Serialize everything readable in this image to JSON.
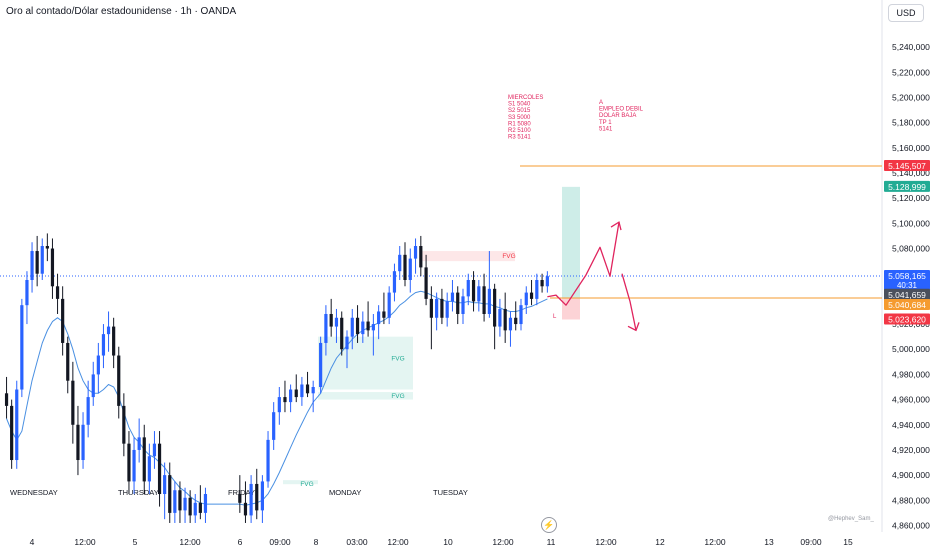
{
  "header": {
    "title": "Oro al contado/Dólar estadounidense · 1h · OANDA",
    "currency": "USD"
  },
  "watermark": "@Hephev_Sam_",
  "colors": {
    "up": "#2962ff",
    "down": "#131722",
    "ma": "#4a90e2",
    "orange": "#f59b2f",
    "red_label": "#f23645",
    "green_label": "#22ab94",
    "blue_label": "#2962ff",
    "grey_label": "#4a4f5c",
    "annotation": "#e0245e"
  },
  "chart_data": {
    "type": "candlestick",
    "y_range": [
      4858000,
      5252000
    ],
    "y_ticks": [
      "5,240,000",
      "5,220,000",
      "5,200,000",
      "5,180,000",
      "5,160,000",
      "5,140,000",
      "5,120,000",
      "5,100,000",
      "5,080,000",
      "5,060,000",
      "5,040,000",
      "5,020,000",
      "5,000,000",
      "4,980,000",
      "4,960,000",
      "4,940,000",
      "4,920,000",
      "4,900,000",
      "4,880,000",
      "4,860,000"
    ],
    "y_tick_values": [
      5240000,
      5220000,
      5200000,
      5180000,
      5160000,
      5140000,
      5120000,
      5100000,
      5080000,
      5060000,
      5040000,
      5020000,
      5000000,
      4980000,
      4960000,
      4940000,
      4920000,
      4900000,
      4880000,
      4860000
    ],
    "x_labels": [
      "4",
      "12:00",
      "5",
      "12:00",
      "6",
      "09:00",
      "8",
      "03:00",
      "12:00",
      "10",
      "12:00",
      "11",
      "12:00",
      "12",
      "12:00",
      "13",
      "09:00",
      "15"
    ],
    "day_labels": [
      "WEDNESDAY",
      "THURSDAY",
      "FRIDAY",
      "MONDAY",
      "TUESDAY"
    ],
    "price_labels": [
      {
        "text": "5.145,507",
        "value": 5145507,
        "color": "red_label"
      },
      {
        "text": "5.128,999",
        "value": 5128999,
        "color": "green_label"
      },
      {
        "text": "5.058,165",
        "value": 5058165,
        "color": "blue_label",
        "sub": "40:31"
      },
      {
        "text": "5.041,659",
        "value": 5041659,
        "color": "grey_label"
      },
      {
        "text": "5.040,684",
        "value": 5040684,
        "color": "orange"
      },
      {
        "text": "5.023,620",
        "value": 5023620,
        "color": "red_label"
      }
    ],
    "horizontal_lines": [
      {
        "value": 5145507,
        "style": "solid",
        "color": "orange"
      },
      {
        "value": 5058165,
        "style": "dotted",
        "color": "blue_label"
      },
      {
        "value": 5040684,
        "style": "solid",
        "color": "orange"
      }
    ],
    "candles": [
      [
        4965000,
        4978000,
        4945000,
        4955000
      ],
      [
        4955000,
        4960000,
        4905000,
        4912000
      ],
      [
        4912000,
        4975000,
        4905000,
        4968000
      ],
      [
        4968000,
        5040000,
        4962000,
        5035000
      ],
      [
        5035000,
        5062000,
        5020000,
        5055000
      ],
      [
        5055000,
        5085000,
        5045000,
        5078000
      ],
      [
        5078000,
        5090000,
        5050000,
        5060000
      ],
      [
        5060000,
        5088000,
        5055000,
        5082000
      ],
      [
        5082000,
        5092000,
        5070000,
        5080000
      ],
      [
        5080000,
        5088000,
        5040000,
        5050000
      ],
      [
        5050000,
        5060000,
        5028000,
        5040000
      ],
      [
        5040000,
        5050000,
        4995000,
        5005000
      ],
      [
        5005000,
        5010000,
        4965000,
        4975000
      ],
      [
        4975000,
        4990000,
        4925000,
        4940000
      ],
      [
        4940000,
        4955000,
        4900000,
        4912000
      ],
      [
        4912000,
        4950000,
        4905000,
        4940000
      ],
      [
        4940000,
        4975000,
        4930000,
        4962000
      ],
      [
        4962000,
        4990000,
        4955000,
        4980000
      ],
      [
        4980000,
        5005000,
        4965000,
        4995000
      ],
      [
        4995000,
        5020000,
        4985000,
        5012000
      ],
      [
        5012000,
        5030000,
        4998000,
        5018000
      ],
      [
        5018000,
        5025000,
        4985000,
        4995000
      ],
      [
        4995000,
        5002000,
        4945000,
        4955000
      ],
      [
        4955000,
        4965000,
        4915000,
        4925000
      ],
      [
        4925000,
        4935000,
        4885000,
        4895000
      ],
      [
        4895000,
        4930000,
        4885000,
        4920000
      ],
      [
        4920000,
        4945000,
        4910000,
        4930000
      ],
      [
        4930000,
        4940000,
        4885000,
        4895000
      ],
      [
        4895000,
        4925000,
        4885000,
        4915000
      ],
      [
        4915000,
        4935000,
        4905000,
        4925000
      ],
      [
        4925000,
        4935000,
        4875000,
        4885000
      ],
      [
        4885000,
        4910000,
        4865000,
        4900000
      ],
      [
        4900000,
        4910000,
        4862000,
        4870000
      ],
      [
        4870000,
        4895000,
        4862000,
        4888000
      ],
      [
        4888000,
        4895000,
        4862000,
        4872000
      ],
      [
        4872000,
        4890000,
        4862000,
        4882000
      ],
      [
        4882000,
        4888000,
        4862000,
        4868000
      ],
      [
        4868000,
        4885000,
        4862000,
        4878000
      ],
      [
        4878000,
        4892000,
        4865000,
        4870000
      ],
      [
        4870000,
        4890000,
        4862000,
        4885000
      ],
      [
        4885000,
        4900000,
        4870000,
        4878000
      ],
      [
        4878000,
        4895000,
        4862000,
        4868000
      ],
      [
        4868000,
        4900000,
        4862000,
        4893000
      ],
      [
        4893000,
        4905000,
        4865000,
        4872000
      ],
      [
        4872000,
        4900000,
        4862000,
        4895000
      ],
      [
        4895000,
        4935000,
        4890000,
        4928000
      ],
      [
        4928000,
        4958000,
        4920000,
        4950000
      ],
      [
        4950000,
        4970000,
        4940000,
        4962000
      ],
      [
        4962000,
        4975000,
        4950000,
        4958000
      ],
      [
        4958000,
        4972000,
        4950000,
        4968000
      ],
      [
        4968000,
        4980000,
        4958000,
        4962000
      ],
      [
        4962000,
        4978000,
        4955000,
        4972000
      ],
      [
        4972000,
        4982000,
        4962000,
        4965000
      ],
      [
        4965000,
        4975000,
        4950000,
        4970000
      ],
      [
        4970000,
        5010000,
        4965000,
        5005000
      ],
      [
        5005000,
        5035000,
        4995000,
        5028000
      ],
      [
        5028000,
        5040000,
        5010000,
        5018000
      ],
      [
        5018000,
        5032000,
        5005000,
        5025000
      ],
      [
        5025000,
        5030000,
        4995000,
        5000000
      ],
      [
        5000000,
        5015000,
        4985000,
        5010000
      ],
      [
        5010000,
        5032000,
        5000000,
        5025000
      ],
      [
        5025000,
        5035000,
        5005000,
        5012000
      ],
      [
        5012000,
        5030000,
        5005000,
        5022000
      ],
      [
        5022000,
        5038000,
        5010000,
        5015000
      ],
      [
        5015000,
        5028000,
        4995000,
        5020000
      ],
      [
        5020000,
        5035000,
        5008000,
        5030000
      ],
      [
        5030000,
        5045000,
        5020000,
        5025000
      ],
      [
        5025000,
        5050000,
        5020000,
        5045000
      ],
      [
        5045000,
        5068000,
        5038000,
        5062000
      ],
      [
        5062000,
        5082000,
        5055000,
        5075000
      ],
      [
        5075000,
        5085000,
        5050000,
        5055000
      ],
      [
        5055000,
        5080000,
        5045000,
        5072000
      ],
      [
        5072000,
        5088000,
        5060000,
        5082000
      ],
      [
        5082000,
        5090000,
        5058000,
        5065000
      ],
      [
        5065000,
        5075000,
        5035000,
        5040000
      ],
      [
        5040000,
        5050000,
        5000000,
        5025000
      ],
      [
        5025000,
        5045000,
        5015000,
        5040000
      ],
      [
        5040000,
        5048000,
        5020000,
        5025000
      ],
      [
        5025000,
        5045000,
        5018000,
        5038000
      ],
      [
        5038000,
        5055000,
        5030000,
        5045000
      ],
      [
        5045000,
        5050000,
        5020000,
        5028000
      ],
      [
        5028000,
        5048000,
        5020000,
        5042000
      ],
      [
        5042000,
        5060000,
        5035000,
        5055000
      ],
      [
        5055000,
        5062000,
        5030000,
        5038000
      ],
      [
        5038000,
        5055000,
        5030000,
        5050000
      ],
      [
        5050000,
        5060000,
        5022000,
        5028000
      ],
      [
        5028000,
        5078000,
        5025000,
        5048000
      ],
      [
        5048000,
        5052000,
        5000000,
        5018000
      ],
      [
        5018000,
        5040000,
        5010000,
        5032000
      ],
      [
        5032000,
        5045000,
        5005000,
        5015000
      ],
      [
        5015000,
        5030000,
        5002000,
        5025000
      ],
      [
        5025000,
        5038000,
        5015000,
        5020000
      ],
      [
        5020000,
        5040000,
        5015000,
        5035000
      ],
      [
        5035000,
        5050000,
        5028000,
        5045000
      ],
      [
        5045000,
        5055000,
        5035000,
        5040000
      ],
      [
        5040000,
        5060000,
        5035000,
        5055000
      ],
      [
        5055000,
        5060000,
        5045000,
        5050000
      ],
      [
        5050000,
        5062000,
        5045000,
        5058000
      ]
    ],
    "moving_average": [
      4945000,
      4935000,
      4928000,
      4935000,
      4955000,
      4975000,
      4990000,
      5005000,
      5015000,
      5022000,
      5025000,
      5022000,
      5012000,
      5000000,
      4985000,
      4975000,
      4968000,
      4965000,
      4965000,
      4968000,
      4972000,
      4970000,
      4962000,
      4950000,
      4938000,
      4930000,
      4926000,
      4920000,
      4916000,
      4914000,
      4910000,
      4906000,
      4900000,
      4895000,
      4890000,
      4887000,
      4883000,
      4880000,
      4878000,
      4877000,
      4877000,
      4876000,
      4877000,
      4878000,
      4880000,
      4885000,
      4893000,
      4902000,
      4912000,
      4922000,
      4932000,
      4941000,
      4950000,
      4958000,
      4965000,
      4975000,
      4985000,
      4993000,
      4998000,
      5003000,
      5008000,
      5012000,
      5015000,
      5017000,
      5019000,
      5021000,
      5023000,
      5026000,
      5030000,
      5035000,
      5038000,
      5042000,
      5045000,
      5046000,
      5045000,
      5043000,
      5041000,
      5039000,
      5038000,
      5038000,
      5037000,
      5037000,
      5038000,
      5037000,
      5037000,
      5036000,
      5036000,
      5034000,
      5033000,
      5031000,
      5030000,
      5030000,
      5031000,
      5033000,
      5034000,
      5036000,
      5038000,
      5040000
    ],
    "fvg_zones": [
      {
        "label": "FVG",
        "y_top": 5078000,
        "y_bottom": 5070000,
        "kind": "bearish"
      },
      {
        "label": "FVG",
        "y_top": 5010000,
        "y_bottom": 4968000,
        "kind": "bullish"
      },
      {
        "label": "FVG",
        "y_top": 4966000,
        "y_bottom": 4960000,
        "kind": "bullish"
      },
      {
        "label": "FVG",
        "y_top": 4896000,
        "y_bottom": 4893000,
        "kind": "bullish"
      }
    ],
    "position_tool": {
      "entry": 5040684,
      "target": 5128999,
      "stop": 5023620
    },
    "projection_up": [
      [
        5041659,
        5043000
      ],
      [
        5043000,
        5035000
      ],
      [
        5035000,
        5059000
      ],
      [
        5059000,
        5081000
      ],
      [
        5081000,
        5058000
      ],
      [
        5058000,
        5101000
      ]
    ],
    "projection_down": [
      [
        5060000,
        5038000
      ],
      [
        5038000,
        5015000
      ]
    ],
    "annotations": {
      "left": [
        "MIERCOLES",
        "S1 5040",
        "S2 5015",
        "S3 5000",
        "R1 5080",
        "R2 5100",
        "R3 5141"
      ],
      "right": [
        "A",
        "EMPLEO DEBIL",
        "DOLAR BAJA",
        "TP 1",
        "5141"
      ],
      "L": "L"
    }
  }
}
